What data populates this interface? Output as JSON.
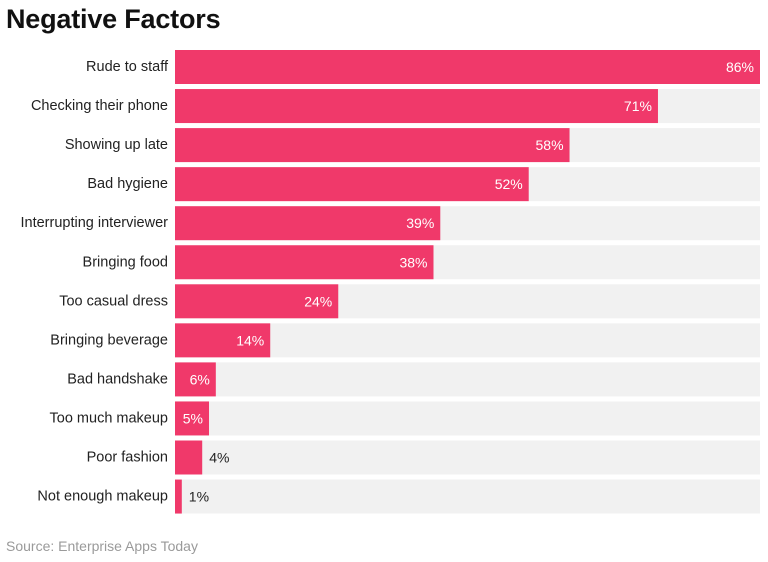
{
  "source": "Source: Enterprise Apps Today",
  "colors": {
    "bar": "#f0396a",
    "track": "#f1f1f1",
    "label_inside": "#ffffff",
    "label_outside": "#222222",
    "category_text": "#222222"
  },
  "chart_data": {
    "type": "bar",
    "orientation": "horizontal",
    "title": "Negative Factors",
    "categories": [
      "Rude to staff",
      "Checking their phone",
      "Showing up late",
      "Bad hygiene",
      "Interrupting interviewer",
      "Bringing food",
      "Too casual dress",
      "Bringing beverage",
      "Bad handshake",
      "Too much makeup",
      "Poor fashion",
      "Not enough makeup"
    ],
    "values": [
      86,
      71,
      58,
      52,
      39,
      38,
      24,
      14,
      6,
      5,
      4,
      1
    ],
    "value_labels": [
      "86%",
      "71%",
      "58%",
      "52%",
      "39%",
      "38%",
      "24%",
      "14%",
      "6%",
      "5%",
      "4%",
      "1%"
    ],
    "xlim": [
      0,
      86
    ],
    "grid": false,
    "legend": "none"
  }
}
